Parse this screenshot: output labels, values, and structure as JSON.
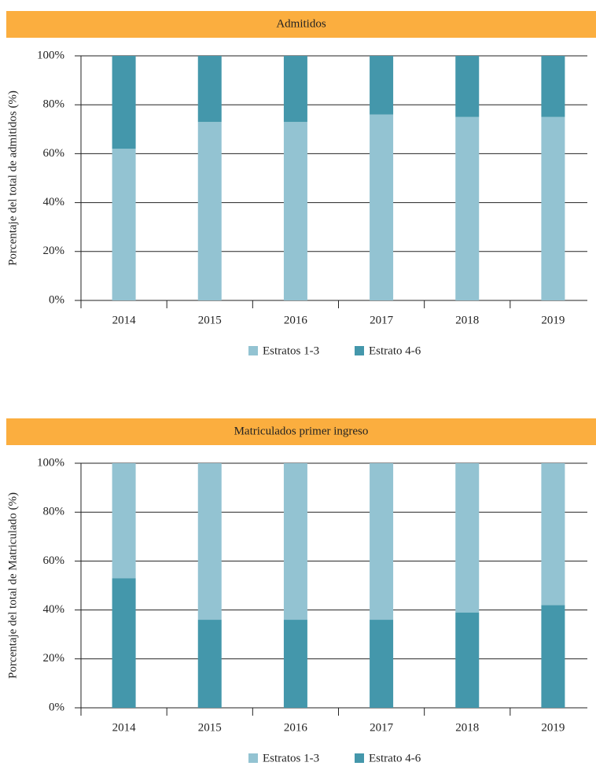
{
  "chart_data": [
    {
      "type": "stacked_bar",
      "title": "Admitidos",
      "y_label": "Porcentaje del total de admitidos (%)",
      "categories": [
        "2014",
        "2015",
        "2016",
        "2017",
        "2018",
        "2019"
      ],
      "series": [
        {
          "name": "Estratos 1-3",
          "color": "#93c3d2",
          "values": [
            62,
            73,
            73,
            76,
            75,
            75
          ]
        },
        {
          "name": "Estrato 4-6",
          "color": "#4497ab",
          "values": [
            38,
            27,
            27,
            24,
            25,
            25
          ]
        }
      ],
      "stack_order": [
        0,
        1
      ],
      "ylim": [
        0,
        100
      ],
      "yticks": [
        {
          "value": 0,
          "label": "0%"
        },
        {
          "value": 20,
          "label": "20%"
        },
        {
          "value": 40,
          "label": "40%"
        },
        {
          "value": 60,
          "label": "60%"
        },
        {
          "value": 80,
          "label": "80%"
        },
        {
          "value": 100,
          "label": "100%"
        }
      ],
      "grid": true,
      "header_color": "#fbae3f"
    },
    {
      "type": "stacked_bar",
      "title": "Matriculados primer ingreso",
      "y_label": "Porcentaje del total de Matriculado (%)",
      "categories": [
        "2014",
        "2015",
        "2016",
        "2017",
        "2018",
        "2019"
      ],
      "series": [
        {
          "name": "Estratos 1-3",
          "color": "#93c3d2",
          "values": [
            47,
            64,
            64,
            64,
            61,
            58
          ]
        },
        {
          "name": "Estrato 4-6",
          "color": "#4497ab",
          "values": [
            53,
            36,
            36,
            36,
            39,
            42
          ]
        }
      ],
      "stack_order": [
        1,
        0
      ],
      "ylim": [
        0,
        100
      ],
      "yticks": [
        {
          "value": 0,
          "label": "0%"
        },
        {
          "value": 20,
          "label": "20%"
        },
        {
          "value": 40,
          "label": "40%"
        },
        {
          "value": 60,
          "label": "60%"
        },
        {
          "value": 80,
          "label": "80%"
        },
        {
          "value": 100,
          "label": "100%"
        }
      ],
      "grid": true,
      "header_color": "#fbae3f"
    }
  ]
}
